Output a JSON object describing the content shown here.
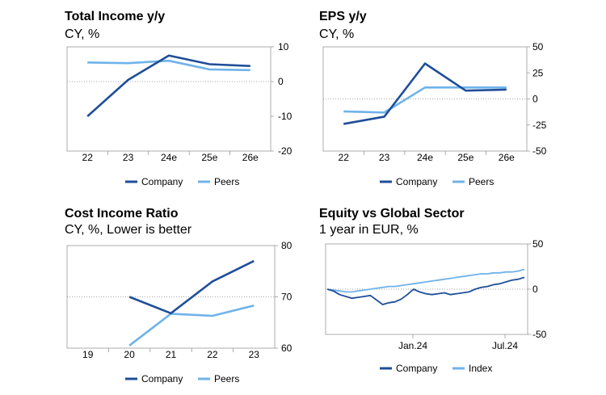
{
  "colors": {
    "company": "#1f4e98",
    "peers": "#6fb3ea",
    "axis": "#999999",
    "grid": "#888888"
  },
  "chart_data": [
    {
      "id": "p1",
      "type": "line",
      "title": "Total Income y/y",
      "subtitle": "CY, %",
      "categories": [
        "22",
        "23",
        "24e",
        "25e",
        "26e"
      ],
      "series": [
        {
          "name": "Company",
          "values": [
            -10,
            0.5,
            7.5,
            5,
            4.5
          ]
        },
        {
          "name": "Peers",
          "values": [
            5.5,
            5.3,
            6,
            3.5,
            3.3
          ]
        }
      ],
      "yticks": [
        10,
        0,
        -10,
        -20
      ],
      "ylim": [
        -20,
        10
      ],
      "legend": "bottom"
    },
    {
      "id": "p2",
      "type": "line",
      "title": "EPS y/y",
      "subtitle": "CY, %",
      "categories": [
        "22",
        "23",
        "24e",
        "25e",
        "26e"
      ],
      "series": [
        {
          "name": "Company",
          "values": [
            -24,
            -17,
            34,
            8,
            9
          ]
        },
        {
          "name": "Peers",
          "values": [
            -12,
            -13,
            11,
            11,
            11
          ]
        }
      ],
      "yticks": [
        50,
        25,
        0,
        -25,
        -50
      ],
      "ylim": [
        -50,
        50
      ],
      "legend": "bottom"
    },
    {
      "id": "p3",
      "type": "line",
      "title": "Cost Income Ratio",
      "subtitle": "CY, %, Lower is better",
      "categories": [
        "19",
        "20",
        "21",
        "22",
        "23"
      ],
      "series": [
        {
          "name": "Company",
          "values": [
            null,
            70,
            66.8,
            73,
            77
          ]
        },
        {
          "name": "Peers",
          "values": [
            null,
            60.5,
            66.7,
            66.3,
            68.3
          ]
        }
      ],
      "yticks": [
        80,
        70,
        60
      ],
      "ylim": [
        60,
        80
      ],
      "legend": "bottom"
    },
    {
      "id": "p4",
      "type": "line",
      "title": "Equity vs Global Sector",
      "subtitle": "1 year in EUR, %",
      "xticks": [
        "Jan.24",
        "Jul.24"
      ],
      "series": [
        {
          "name": "Company",
          "values": [
            0,
            -2,
            -6,
            -8,
            -10,
            -9,
            -8,
            -7,
            -12,
            -17,
            -15,
            -14,
            -11,
            -6,
            0,
            -3,
            -5,
            -6,
            -5,
            -4,
            -6,
            -5,
            -4,
            -3,
            0,
            2,
            3,
            5,
            6,
            8,
            10,
            11,
            13
          ]
        },
        {
          "name": "Index",
          "values": [
            0,
            -1,
            -2,
            -3,
            -3,
            -2,
            -1,
            0,
            1,
            2,
            3,
            3,
            4,
            5,
            6,
            7,
            8,
            9,
            10,
            11,
            12,
            13,
            14,
            15,
            16,
            17,
            17,
            18,
            18,
            19,
            19,
            20,
            22
          ]
        }
      ],
      "yticks": [
        50,
        0,
        -50
      ],
      "ylim": [
        -50,
        50
      ],
      "legend": "bottom"
    }
  ]
}
